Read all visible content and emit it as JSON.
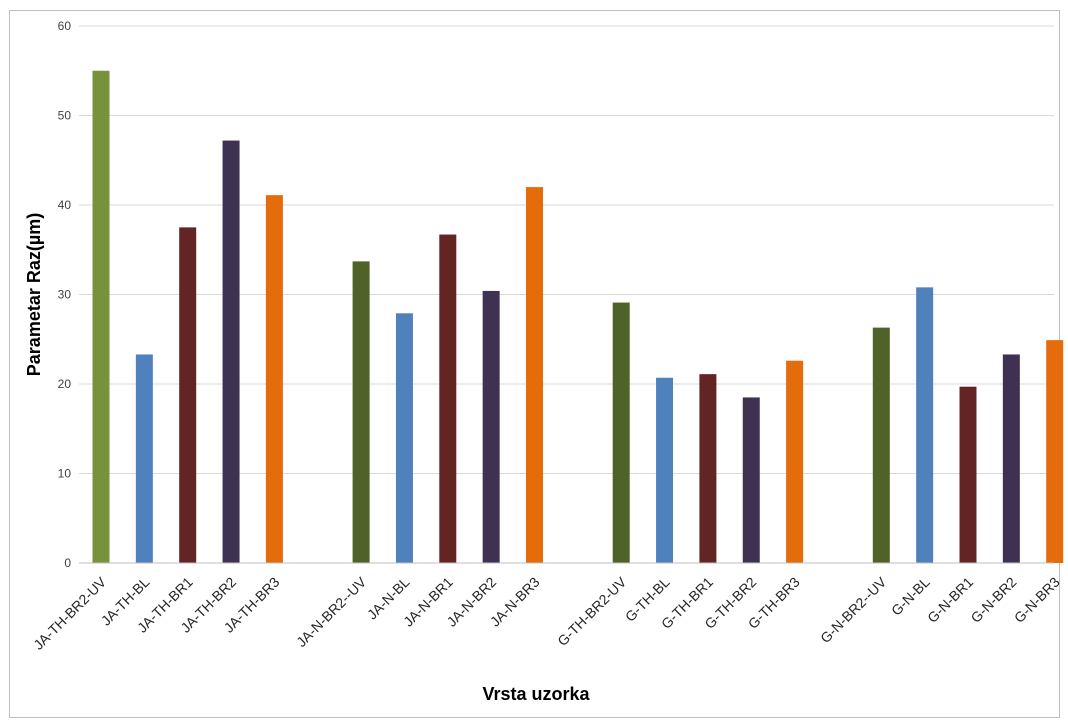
{
  "chart_data": {
    "type": "bar",
    "xlabel": "Vrsta  uzorka",
    "ylabel": "Parametar Raz(µm)",
    "ylim": [
      0,
      60
    ],
    "yticks": [
      0,
      10,
      20,
      30,
      40,
      50,
      60
    ],
    "grid": true,
    "legend": "none",
    "groups": [
      {
        "bars": [
          {
            "label": "JA-TH-BR2-UV",
            "value": 55.0,
            "color": "#76933c"
          },
          {
            "label": "JA-TH-BL",
            "value": 23.3,
            "color": "#4f81bd"
          },
          {
            "label": "JA-TH-BR1",
            "value": 37.5,
            "color": "#632523"
          },
          {
            "label": "JA-TH-BR2",
            "value": 47.2,
            "color": "#3f3151"
          },
          {
            "label": "JA-TH-BR3",
            "value": 41.1,
            "color": "#e46c0a"
          }
        ]
      },
      {
        "bars": [
          {
            "label": "JA-N-BR2--UV",
            "value": 33.7,
            "color": "#4f6228"
          },
          {
            "label": "JA-N-BL",
            "value": 27.9,
            "color": "#4f81bd"
          },
          {
            "label": "JA-N-BR1",
            "value": 36.7,
            "color": "#632523"
          },
          {
            "label": "JA-N-BR2",
            "value": 30.4,
            "color": "#3f3151"
          },
          {
            "label": "JA-N-BR3",
            "value": 42.0,
            "color": "#e46c0a"
          }
        ]
      },
      {
        "bars": [
          {
            "label": "G-TH-BR2-UV",
            "value": 29.1,
            "color": "#4f6228"
          },
          {
            "label": "G-TH-BL",
            "value": 20.7,
            "color": "#4f81bd"
          },
          {
            "label": "G-TH-BR1",
            "value": 21.1,
            "color": "#632523"
          },
          {
            "label": "G-TH-BR2",
            "value": 18.5,
            "color": "#3f3151"
          },
          {
            "label": "G-TH-BR3",
            "value": 22.6,
            "color": "#e46c0a"
          }
        ]
      },
      {
        "bars": [
          {
            "label": "G-N-BR2--UV",
            "value": 26.3,
            "color": "#4f6228"
          },
          {
            "label": "G-N-BL",
            "value": 30.8,
            "color": "#4f81bd"
          },
          {
            "label": "G-N-BR1",
            "value": 19.7,
            "color": "#632523"
          },
          {
            "label": "G-N-BR2",
            "value": 23.3,
            "color": "#3f3151"
          },
          {
            "label": "G-N-BR3",
            "value": 24.9,
            "color": "#e46c0a"
          }
        ]
      }
    ]
  }
}
